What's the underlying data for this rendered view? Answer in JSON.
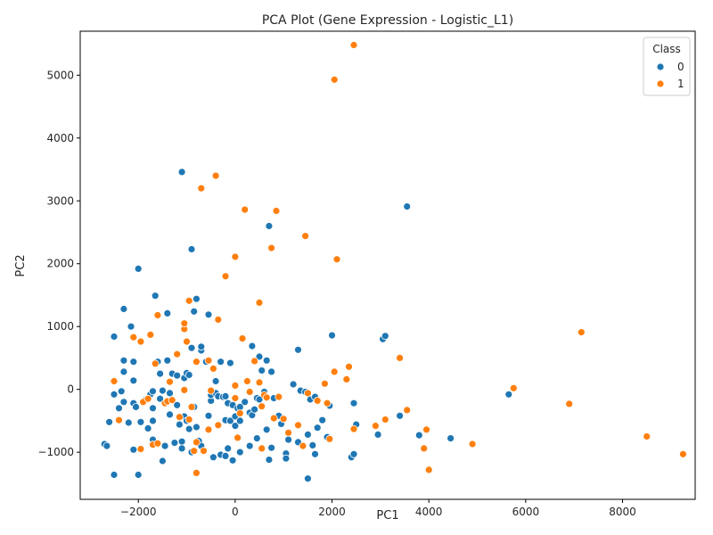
{
  "chart_data": {
    "type": "scatter",
    "title": "PCA Plot (Gene Expression - Logistic_L1)",
    "xlabel": "PC1",
    "ylabel": "PC2",
    "xlim": [
      -3200,
      9500
    ],
    "ylim": [
      -1750,
      5700
    ],
    "xticks": [
      -2000,
      0,
      2000,
      4000,
      6000,
      8000
    ],
    "yticks": [
      -1000,
      0,
      1000,
      2000,
      3000,
      4000,
      5000
    ],
    "grid": false,
    "legend": {
      "title": "Class",
      "position": "top-right"
    },
    "series": [
      {
        "name": "0",
        "color": "#1f77b4",
        "points": [
          [
            -2700,
            -870
          ],
          [
            -2650,
            -900
          ],
          [
            -2600,
            -520
          ],
          [
            -2500,
            840
          ],
          [
            -2500,
            -80
          ],
          [
            -2500,
            -1360
          ],
          [
            -2400,
            -500
          ],
          [
            -2400,
            -300
          ],
          [
            -2350,
            -30
          ],
          [
            -2300,
            1280
          ],
          [
            -2300,
            460
          ],
          [
            -2300,
            280
          ],
          [
            -2300,
            -200
          ],
          [
            -2200,
            -530
          ],
          [
            -2150,
            1000
          ],
          [
            -2100,
            440
          ],
          [
            -2100,
            140
          ],
          [
            -2100,
            -220
          ],
          [
            -2100,
            -960
          ],
          [
            -2050,
            -280
          ],
          [
            -2000,
            1920
          ],
          [
            -2000,
            -1360
          ],
          [
            -1950,
            -520
          ],
          [
            -1850,
            -170
          ],
          [
            -1800,
            -620
          ],
          [
            -1750,
            -80
          ],
          [
            -1700,
            -30
          ],
          [
            -1700,
            -300
          ],
          [
            -1700,
            -500
          ],
          [
            -1700,
            -800
          ],
          [
            -1650,
            1490
          ],
          [
            -1600,
            440
          ],
          [
            -1550,
            -150
          ],
          [
            -1550,
            250
          ],
          [
            -1500,
            -20
          ],
          [
            -1500,
            -1140
          ],
          [
            -1450,
            -900
          ],
          [
            -1400,
            460
          ],
          [
            -1400,
            1210
          ],
          [
            -1350,
            -60
          ],
          [
            -1350,
            -400
          ],
          [
            -1300,
            250
          ],
          [
            -1250,
            -850
          ],
          [
            -1200,
            220
          ],
          [
            -1200,
            -250
          ],
          [
            -1150,
            -560
          ],
          [
            -1100,
            3460
          ],
          [
            -1100,
            -830
          ],
          [
            -1100,
            -940
          ],
          [
            -1050,
            -430
          ],
          [
            -1050,
            180
          ],
          [
            -1000,
            -500
          ],
          [
            -1000,
            260
          ],
          [
            -950,
            -630
          ],
          [
            -950,
            230
          ],
          [
            -900,
            660
          ],
          [
            -900,
            2230
          ],
          [
            -900,
            -1000
          ],
          [
            -850,
            1240
          ],
          [
            -850,
            -280
          ],
          [
            -800,
            1440
          ],
          [
            -800,
            -600
          ],
          [
            -750,
            -820
          ],
          [
            -700,
            620
          ],
          [
            -700,
            680
          ],
          [
            -700,
            -900
          ],
          [
            -600,
            440
          ],
          [
            -550,
            1190
          ],
          [
            -550,
            -420
          ],
          [
            -500,
            -180
          ],
          [
            -500,
            -90
          ],
          [
            -450,
            -1080
          ],
          [
            -400,
            -60
          ],
          [
            -400,
            130
          ],
          [
            -350,
            -110
          ],
          [
            -300,
            440
          ],
          [
            -300,
            -1040
          ],
          [
            -250,
            -120
          ],
          [
            -200,
            -110
          ],
          [
            -200,
            -490
          ],
          [
            -200,
            -1060
          ],
          [
            -150,
            -220
          ],
          [
            -150,
            -940
          ],
          [
            -100,
            -500
          ],
          [
            -100,
            420
          ],
          [
            -50,
            -1130
          ],
          [
            -50,
            -250
          ],
          [
            0,
            -430
          ],
          [
            0,
            -580
          ],
          [
            50,
            -300
          ],
          [
            100,
            -280
          ],
          [
            100,
            -500
          ],
          [
            100,
            -1000
          ],
          [
            200,
            -200
          ],
          [
            300,
            -900
          ],
          [
            300,
            -370
          ],
          [
            350,
            690
          ],
          [
            350,
            -410
          ],
          [
            400,
            -320
          ],
          [
            450,
            -140
          ],
          [
            450,
            -780
          ],
          [
            500,
            -160
          ],
          [
            500,
            520
          ],
          [
            550,
            300
          ],
          [
            600,
            -40
          ],
          [
            650,
            460
          ],
          [
            650,
            -640
          ],
          [
            700,
            2600
          ],
          [
            700,
            -1120
          ],
          [
            750,
            280
          ],
          [
            750,
            -930
          ],
          [
            800,
            -140
          ],
          [
            900,
            -420
          ],
          [
            950,
            -550
          ],
          [
            1050,
            -1020
          ],
          [
            1050,
            -1100
          ],
          [
            1100,
            -800
          ],
          [
            1200,
            80
          ],
          [
            1300,
            630
          ],
          [
            1300,
            -840
          ],
          [
            1350,
            -20
          ],
          [
            1450,
            -40
          ],
          [
            1500,
            -1420
          ],
          [
            1500,
            -720
          ],
          [
            1550,
            -160
          ],
          [
            1600,
            -890
          ],
          [
            1650,
            -1030
          ],
          [
            1650,
            -120
          ],
          [
            1700,
            -610
          ],
          [
            1800,
            -490
          ],
          [
            1900,
            -760
          ],
          [
            1950,
            -260
          ],
          [
            2000,
            860
          ],
          [
            2400,
            -1080
          ],
          [
            2450,
            -1030
          ],
          [
            2450,
            -220
          ],
          [
            2500,
            -560
          ],
          [
            2950,
            -720
          ],
          [
            3050,
            800
          ],
          [
            3100,
            850
          ],
          [
            3400,
            -420
          ],
          [
            3550,
            2910
          ],
          [
            3800,
            -730
          ],
          [
            4450,
            -780
          ],
          [
            5650,
            -80
          ]
        ]
      },
      {
        "name": "1",
        "color": "#ff7f0e",
        "points": [
          [
            -2500,
            130
          ],
          [
            -2400,
            -490
          ],
          [
            -2100,
            830
          ],
          [
            -1950,
            760
          ],
          [
            -1950,
            -950
          ],
          [
            -1900,
            -200
          ],
          [
            -1800,
            -150
          ],
          [
            -1750,
            870
          ],
          [
            -1700,
            -880
          ],
          [
            -1650,
            410
          ],
          [
            -1600,
            1180
          ],
          [
            -1600,
            -860
          ],
          [
            -1450,
            -220
          ],
          [
            -1400,
            -190
          ],
          [
            -1350,
            120
          ],
          [
            -1300,
            -170
          ],
          [
            -1200,
            560
          ],
          [
            -1150,
            -440
          ],
          [
            -1050,
            -10
          ],
          [
            -1050,
            960
          ],
          [
            -1050,
            1050
          ],
          [
            -1000,
            760
          ],
          [
            -950,
            1410
          ],
          [
            -950,
            -480
          ],
          [
            -900,
            -280
          ],
          [
            -850,
            -980
          ],
          [
            -800,
            -1330
          ],
          [
            -800,
            -840
          ],
          [
            -800,
            440
          ],
          [
            -700,
            3200
          ],
          [
            -650,
            -980
          ],
          [
            -550,
            -640
          ],
          [
            -550,
            460
          ],
          [
            -500,
            -20
          ],
          [
            -450,
            330
          ],
          [
            -400,
            3400
          ],
          [
            -350,
            -570
          ],
          [
            -350,
            1110
          ],
          [
            -200,
            1800
          ],
          [
            0,
            -140
          ],
          [
            0,
            2110
          ],
          [
            0,
            60
          ],
          [
            50,
            -770
          ],
          [
            100,
            -380
          ],
          [
            150,
            810
          ],
          [
            200,
            2860
          ],
          [
            250,
            130
          ],
          [
            300,
            -40
          ],
          [
            400,
            450
          ],
          [
            500,
            110
          ],
          [
            500,
            1380
          ],
          [
            550,
            -940
          ],
          [
            550,
            -270
          ],
          [
            600,
            -90
          ],
          [
            650,
            -130
          ],
          [
            750,
            2250
          ],
          [
            800,
            -460
          ],
          [
            850,
            2840
          ],
          [
            900,
            -120
          ],
          [
            1000,
            -470
          ],
          [
            1100,
            -690
          ],
          [
            1300,
            -570
          ],
          [
            1400,
            -900
          ],
          [
            1450,
            2440
          ],
          [
            1500,
            -60
          ],
          [
            1700,
            -180
          ],
          [
            1850,
            90
          ],
          [
            1900,
            -220
          ],
          [
            1950,
            -790
          ],
          [
            2050,
            4930
          ],
          [
            2050,
            280
          ],
          [
            2100,
            2070
          ],
          [
            2300,
            160
          ],
          [
            2350,
            360
          ],
          [
            2450,
            -630
          ],
          [
            2450,
            5480
          ],
          [
            2900,
            -580
          ],
          [
            3100,
            -480
          ],
          [
            3400,
            500
          ],
          [
            3550,
            -330
          ],
          [
            3900,
            -940
          ],
          [
            3950,
            -640
          ],
          [
            4000,
            -1280
          ],
          [
            4900,
            -870
          ],
          [
            5750,
            20
          ],
          [
            6900,
            -230
          ],
          [
            7150,
            910
          ],
          [
            8500,
            -750
          ],
          [
            9250,
            -1030
          ]
        ]
      }
    ]
  }
}
